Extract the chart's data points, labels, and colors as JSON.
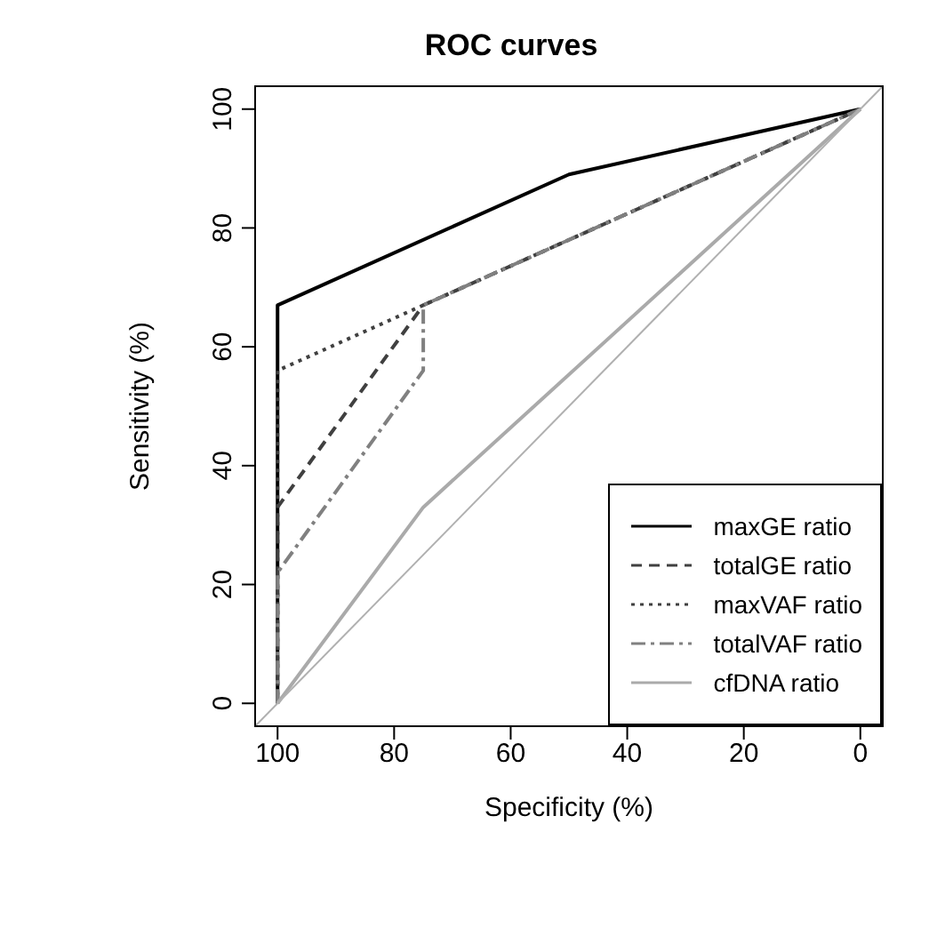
{
  "chart_data": {
    "type": "line",
    "title": "ROC curves",
    "xlabel": "Specificity (%)",
    "ylabel": "Sensitivity (%)",
    "xlim": [
      104,
      -4
    ],
    "ylim": [
      -4,
      104
    ],
    "xticks": [
      100,
      80,
      60,
      40,
      20,
      0
    ],
    "yticks": [
      0,
      20,
      40,
      60,
      80,
      100
    ],
    "grid": false,
    "legend": "bottom right",
    "marker": "none",
    "series": [
      {
        "name": "maxGE ratio",
        "color": "#000000",
        "line_style": "solid",
        "x": [
          100,
          100,
          50,
          0
        ],
        "values": [
          0,
          67,
          89,
          100
        ]
      },
      {
        "name": "totalGE ratio",
        "color": "#404040",
        "line_style": "dashed",
        "x": [
          100,
          100,
          75,
          0
        ],
        "values": [
          0,
          33,
          67,
          100
        ]
      },
      {
        "name": "maxVAF ratio",
        "color": "#404040",
        "line_style": "dotted",
        "x": [
          100,
          100,
          75,
          0
        ],
        "values": [
          0,
          56,
          67,
          100
        ]
      },
      {
        "name": "totalVAF ratio",
        "color": "#808080",
        "line_style": "dashdot",
        "x": [
          100,
          100,
          75,
          75,
          0
        ],
        "values": [
          0,
          22,
          56,
          67,
          100
        ]
      },
      {
        "name": "cfDNA ratio",
        "color": "#aaaaaa",
        "line_style": "solid",
        "x": [
          100,
          75,
          0
        ],
        "values": [
          0,
          33,
          100
        ]
      },
      {
        "color": "#b0b0b0",
        "line_style": "solid",
        "x": [
          104,
          -4
        ],
        "values": [
          -4,
          104
        ]
      }
    ]
  }
}
